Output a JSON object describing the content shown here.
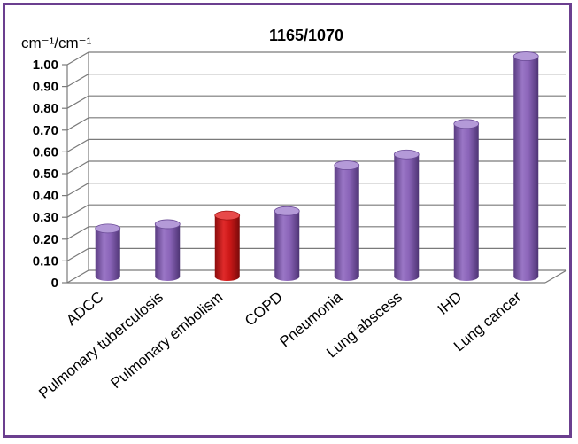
{
  "chart_data": {
    "type": "bar",
    "title": "1165/1070",
    "ylabel": "cm⁻¹/cm⁻¹",
    "xlabel": "",
    "ylim": [
      0,
      1.0
    ],
    "yticks": [
      "0",
      "0.10",
      "0.20",
      "0.30",
      "0.40",
      "0.50",
      "0.60",
      "0.70",
      "0.80",
      "0.90",
      "1.00"
    ],
    "categories": [
      "ADCC",
      "Pulmonary tuberculosis",
      "Pulmonary embolism",
      "COPD",
      "Pneumonia",
      "Lung abscess",
      "IHD",
      "Lung cancer"
    ],
    "values": [
      0.22,
      0.24,
      0.28,
      0.3,
      0.51,
      0.56,
      0.7,
      1.01
    ],
    "grid": true,
    "style": "3d-cylinder",
    "colors": {
      "default_bar": "#8a64b8",
      "highlight_bar": "#cc1818",
      "frame": "#6b3f8f"
    },
    "highlight_index": 2
  }
}
